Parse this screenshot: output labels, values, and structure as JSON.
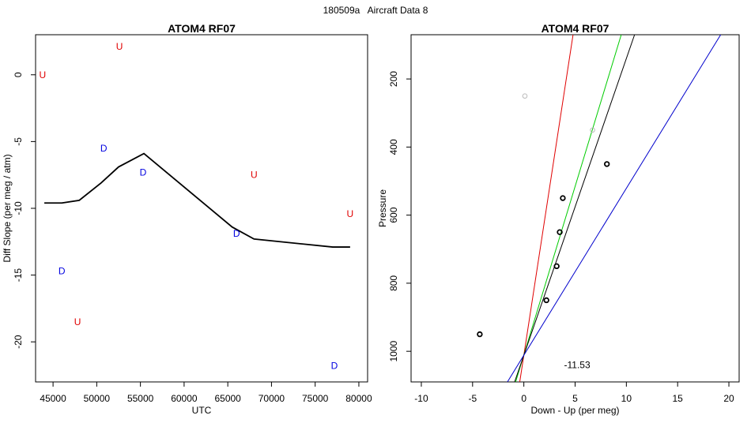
{
  "figure": {
    "title_id": "180509a",
    "title_text": "Aircraft Data 8"
  },
  "chart_data": [
    {
      "type": "line",
      "title": "ATOM4 RF07",
      "xlabel": "UTC",
      "ylabel": "Diff Slope (per meg / atm)",
      "xlim": [
        43000,
        81000
      ],
      "ylim": [
        -23,
        3
      ],
      "xticks": [
        45000,
        50000,
        55000,
        60000,
        65000,
        70000,
        75000,
        80000
      ],
      "yticks": [
        0,
        -5,
        -10,
        -15,
        -20
      ],
      "line": {
        "color": "#000000",
        "x": [
          44000,
          46000,
          48000,
          50500,
          52500,
          55400,
          65500,
          68000,
          77000,
          79000
        ],
        "y": [
          -9.6,
          -9.6,
          -9.4,
          -8.1,
          -6.9,
          -5.9,
          -11.4,
          -12.3,
          -12.9,
          -12.9
        ]
      },
      "markers": [
        {
          "label": "U",
          "color": "#e00000",
          "x": 43800,
          "y": 0.0
        },
        {
          "label": "U",
          "color": "#e00000",
          "x": 52600,
          "y": 2.1
        },
        {
          "label": "U",
          "color": "#e00000",
          "x": 47800,
          "y": -18.5
        },
        {
          "label": "U",
          "color": "#e00000",
          "x": 68000,
          "y": -7.5
        },
        {
          "label": "U",
          "color": "#e00000",
          "x": 79000,
          "y": -10.4
        },
        {
          "label": "D",
          "color": "#0000e0",
          "x": 50800,
          "y": -5.5
        },
        {
          "label": "D",
          "color": "#0000e0",
          "x": 55300,
          "y": -7.3
        },
        {
          "label": "D",
          "color": "#0000e0",
          "x": 46000,
          "y": -14.7
        },
        {
          "label": "D",
          "color": "#0000e0",
          "x": 66000,
          "y": -11.9
        },
        {
          "label": "D",
          "color": "#0000e0",
          "x": 77200,
          "y": -21.8
        }
      ]
    },
    {
      "type": "scatter",
      "title": "ATOM4 RF07",
      "xlabel": "Down - Up (per meg)",
      "ylabel": "Pressure",
      "xlim": [
        -11,
        21
      ],
      "ylim": [
        1090,
        70
      ],
      "xticks": [
        -10,
        -5,
        0,
        5,
        10,
        15,
        20
      ],
      "yticks": [
        200,
        400,
        600,
        800,
        1000
      ],
      "annotation": {
        "text": "-11.53",
        "x": 5.2,
        "y": 1040
      },
      "points": [
        {
          "x": 0.1,
          "y": 250,
          "color": "#bbbbbb"
        },
        {
          "x": 6.7,
          "y": 350,
          "color": "#bbbbbb"
        },
        {
          "x": 8.1,
          "y": 450,
          "color": "#000000"
        },
        {
          "x": 3.8,
          "y": 550,
          "color": "#000000"
        },
        {
          "x": 3.5,
          "y": 650,
          "color": "#000000"
        },
        {
          "x": 3.2,
          "y": 750,
          "color": "#000000"
        },
        {
          "x": 2.2,
          "y": 850,
          "color": "#000000"
        },
        {
          "x": -4.3,
          "y": 950,
          "color": "#000000"
        }
      ],
      "fit_lines": [
        {
          "color": "#e00000",
          "x": [
            -0.4,
            4.8
          ],
          "y": [
            1090,
            70
          ]
        },
        {
          "color": "#00cc00",
          "x": [
            -0.8,
            9.5
          ],
          "y": [
            1090,
            70
          ]
        },
        {
          "color": "#000000",
          "x": [
            -0.9,
            10.8
          ],
          "y": [
            1090,
            70
          ]
        },
        {
          "color": "#0000cc",
          "x": [
            -1.6,
            19.2
          ],
          "y": [
            1090,
            70
          ]
        }
      ]
    }
  ]
}
